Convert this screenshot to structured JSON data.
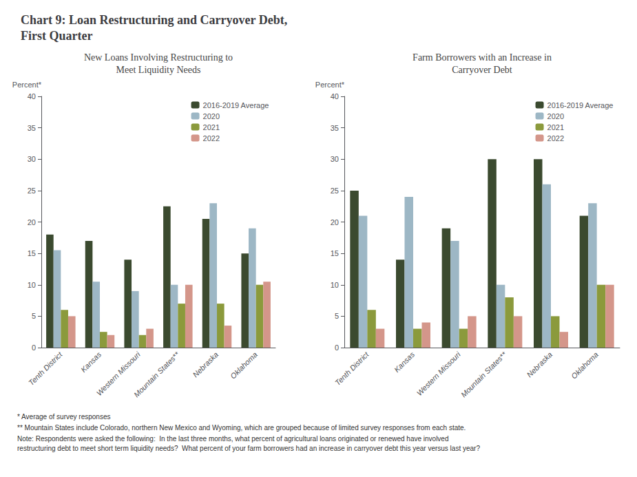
{
  "title": "Chart 9: Loan Restructuring and Carryover Debt,\nFirst Quarter",
  "annotations": [
    "* Average of survey responses",
    "** Mountain States include Colorado, northern New Mexico and Wyoming, which are grouped because of limited survey responses from each state.",
    "Note: Respondents were asked the following:  In the last three months, what percent of agricultural loans originated or renewed have involved\nrestructuring debt to meet short term liquidity needs?  What percent of your farm borrowers had an increase in carryover debt this year versus last year?"
  ],
  "chart_data": [
    {
      "type": "bar",
      "title": "New Loans Involving Restructuring to\nMeet Liquidity Needs",
      "categories": [
        "Tenth District",
        "Kansas",
        "Western Missouri",
        "Mountain States**",
        "Nebraska",
        "Oklahoma"
      ],
      "series": [
        {
          "name": "2016-2019 Average",
          "color": "#3B4A2F",
          "values": [
            18,
            17,
            14,
            22.5,
            20.5,
            15
          ]
        },
        {
          "name": "2020",
          "color": "#9DB7C5",
          "values": [
            15.5,
            10.5,
            9,
            10,
            23,
            19
          ]
        },
        {
          "name": "2021",
          "color": "#8B9A3C",
          "values": [
            6,
            2.5,
            2,
            7,
            7,
            10
          ]
        },
        {
          "name": "2022",
          "color": "#D4968A",
          "values": [
            5,
            2,
            3,
            10,
            3.5,
            10.5
          ]
        }
      ],
      "ylabel": "Percent*",
      "ylim": [
        0,
        40
      ],
      "yticks": [
        0,
        5,
        10,
        15,
        20,
        25,
        30,
        35,
        40
      ],
      "grid": false,
      "legend": "upper right"
    },
    {
      "type": "bar",
      "title": "Farm Borrowers with an Increase in\nCarryover Debt",
      "categories": [
        "Tenth District",
        "Kansas",
        "Western Missouri",
        "Mountain States**",
        "Nebraska",
        "Oklahoma"
      ],
      "series": [
        {
          "name": "2016-2019 Average",
          "color": "#3B4A2F",
          "values": [
            25,
            14,
            19,
            30,
            30,
            21
          ]
        },
        {
          "name": "2020",
          "color": "#9DB7C5",
          "values": [
            21,
            24,
            17,
            10,
            26,
            23
          ]
        },
        {
          "name": "2021",
          "color": "#8B9A3C",
          "values": [
            6,
            3,
            3,
            8,
            5,
            10
          ]
        },
        {
          "name": "2022",
          "color": "#D4968A",
          "values": [
            3,
            4,
            5,
            5,
            2.5,
            10
          ]
        }
      ],
      "ylabel": "Percent*",
      "ylim": [
        0,
        40
      ],
      "yticks": [
        0,
        5,
        10,
        15,
        20,
        25,
        30,
        35,
        40
      ],
      "grid": false,
      "legend": "upper right"
    }
  ]
}
